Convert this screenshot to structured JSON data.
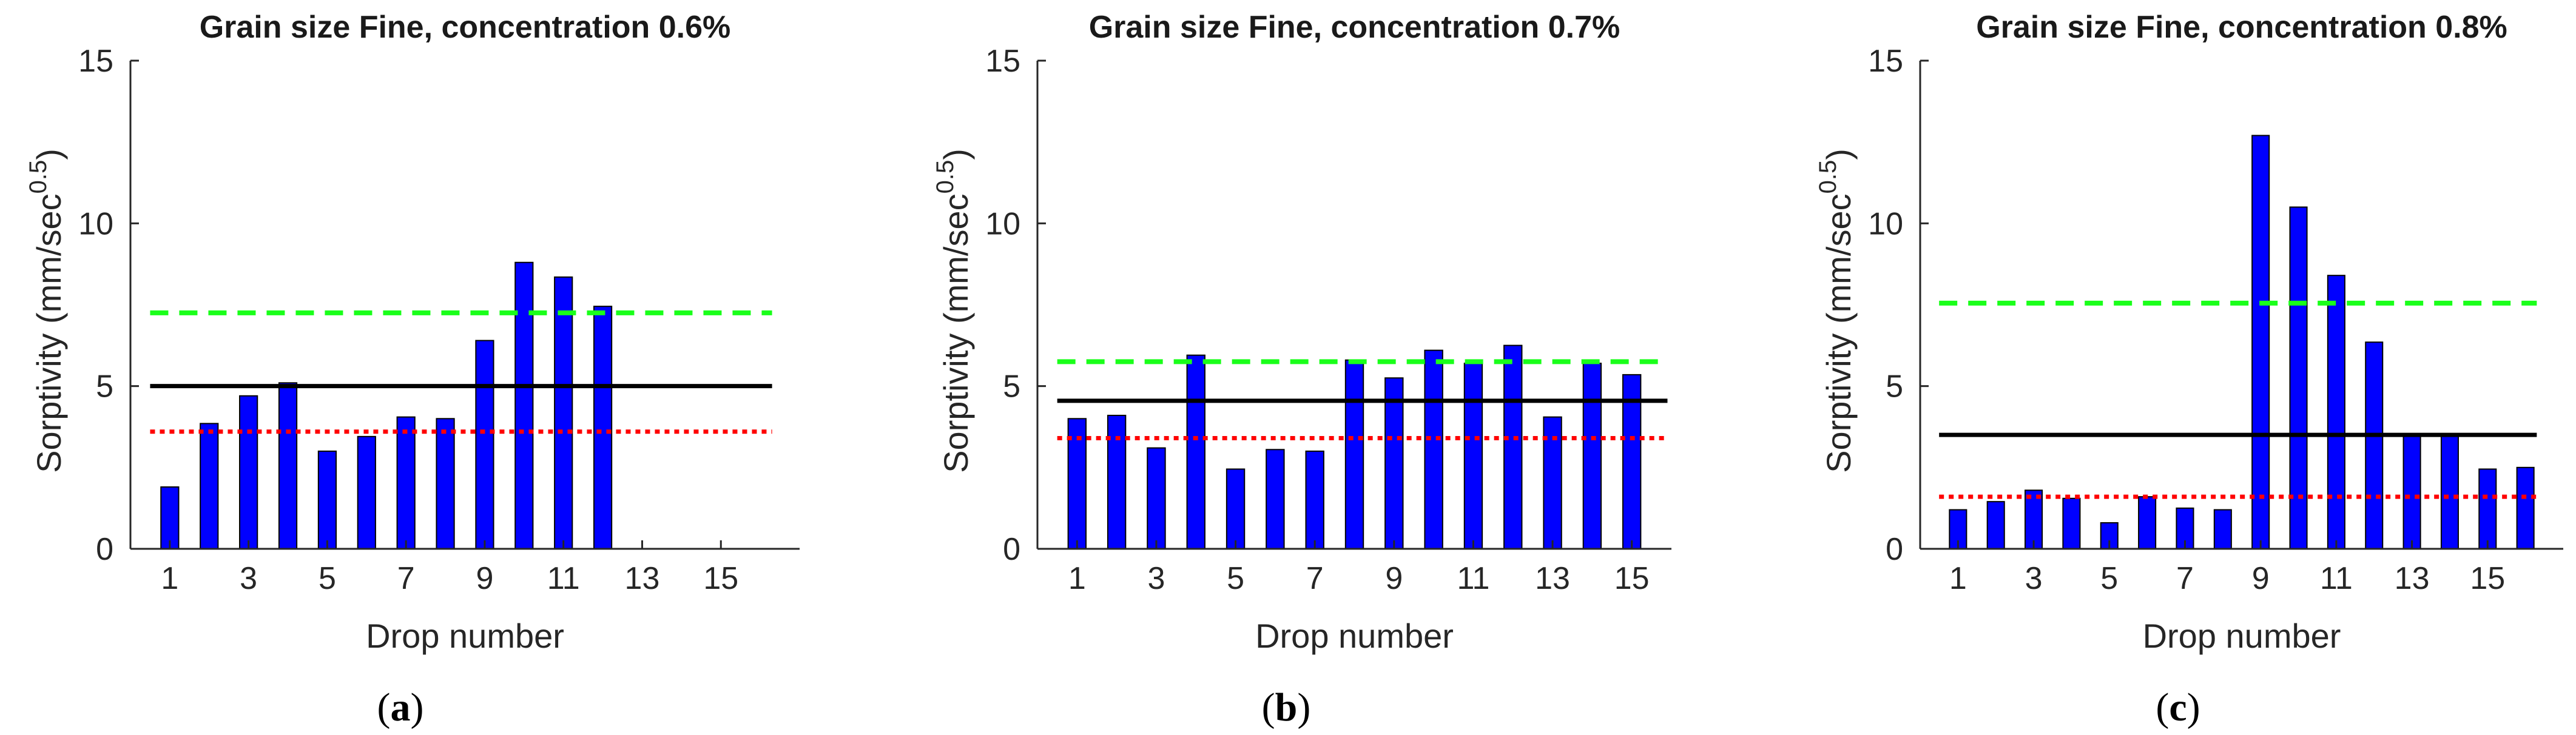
{
  "figure": {
    "colors": {
      "bar": "#0000ff",
      "mean": "#000000",
      "upper": "#1aff1a",
      "lower": "#ff0000",
      "axis": "#262626"
    }
  },
  "chart_data": [
    {
      "id": "a",
      "type": "bar",
      "title": "Grain size Fine, concentration 0.6%",
      "xlabel": "Drop number",
      "ylabel_main": "Sorptivity (mm/sec",
      "ylabel_sup": "0.5",
      "ylabel_close": ")",
      "panel_label": "a",
      "xlim": [
        0,
        17
      ],
      "ylim": [
        0,
        15
      ],
      "xticks": [
        "1",
        "3",
        "5",
        "7",
        "9",
        "11",
        "13",
        "15"
      ],
      "yticks": [
        "0",
        "5",
        "10",
        "15"
      ],
      "categories": [
        1,
        2,
        3,
        4,
        5,
        6,
        7,
        8,
        9,
        10,
        11,
        12,
        13,
        14,
        15,
        16
      ],
      "values": [
        1.9,
        3.85,
        4.7,
        5.1,
        3.0,
        3.45,
        4.05,
        4.0,
        6.4,
        8.8,
        8.35,
        7.45,
        0,
        0,
        0,
        0
      ],
      "mean_line": 5.0,
      "upper_line": 7.25,
      "lower_line": 3.6
    },
    {
      "id": "b",
      "type": "bar",
      "title": "Grain size Fine, concentration 0.7%",
      "xlabel": "Drop number",
      "ylabel_main": "Sorptivity (mm/sec",
      "ylabel_sup": "0.5",
      "ylabel_close": ")",
      "panel_label": "b",
      "xlim": [
        0,
        16
      ],
      "ylim": [
        0,
        15
      ],
      "xticks": [
        "1",
        "3",
        "5",
        "7",
        "9",
        "11",
        "13",
        "15"
      ],
      "yticks": [
        "0",
        "5",
        "10",
        "15"
      ],
      "categories": [
        1,
        2,
        3,
        4,
        5,
        6,
        7,
        8,
        9,
        10,
        11,
        12,
        13,
        14,
        15
      ],
      "values": [
        4.0,
        4.1,
        3.1,
        5.95,
        2.45,
        3.05,
        3.0,
        5.8,
        5.25,
        6.1,
        5.7,
        6.25,
        4.05,
        5.7,
        5.35
      ],
      "mean_line": 4.55,
      "upper_line": 5.75,
      "lower_line": 3.4
    },
    {
      "id": "c",
      "type": "bar",
      "title": "Grain size Fine, concentration 0.8%",
      "xlabel": "Drop number",
      "ylabel_main": "Sorptivity (mm/sec",
      "ylabel_sup": "0.5",
      "ylabel_close": ")",
      "panel_label": "c",
      "xlim": [
        0,
        17
      ],
      "ylim": [
        0,
        15
      ],
      "xticks": [
        "1",
        "3",
        "5",
        "7",
        "9",
        "11",
        "13",
        "15"
      ],
      "yticks": [
        "0",
        "5",
        "10",
        "15"
      ],
      "categories": [
        1,
        2,
        3,
        4,
        5,
        6,
        7,
        8,
        9,
        10,
        11,
        12,
        13,
        14,
        15,
        16
      ],
      "values": [
        1.2,
        1.45,
        1.8,
        1.55,
        0.8,
        1.6,
        1.25,
        1.2,
        12.7,
        10.5,
        8.4,
        6.35,
        3.5,
        3.5,
        2.45,
        2.5
      ],
      "mean_line": 3.5,
      "upper_line": 7.55,
      "lower_line": 1.6
    }
  ]
}
